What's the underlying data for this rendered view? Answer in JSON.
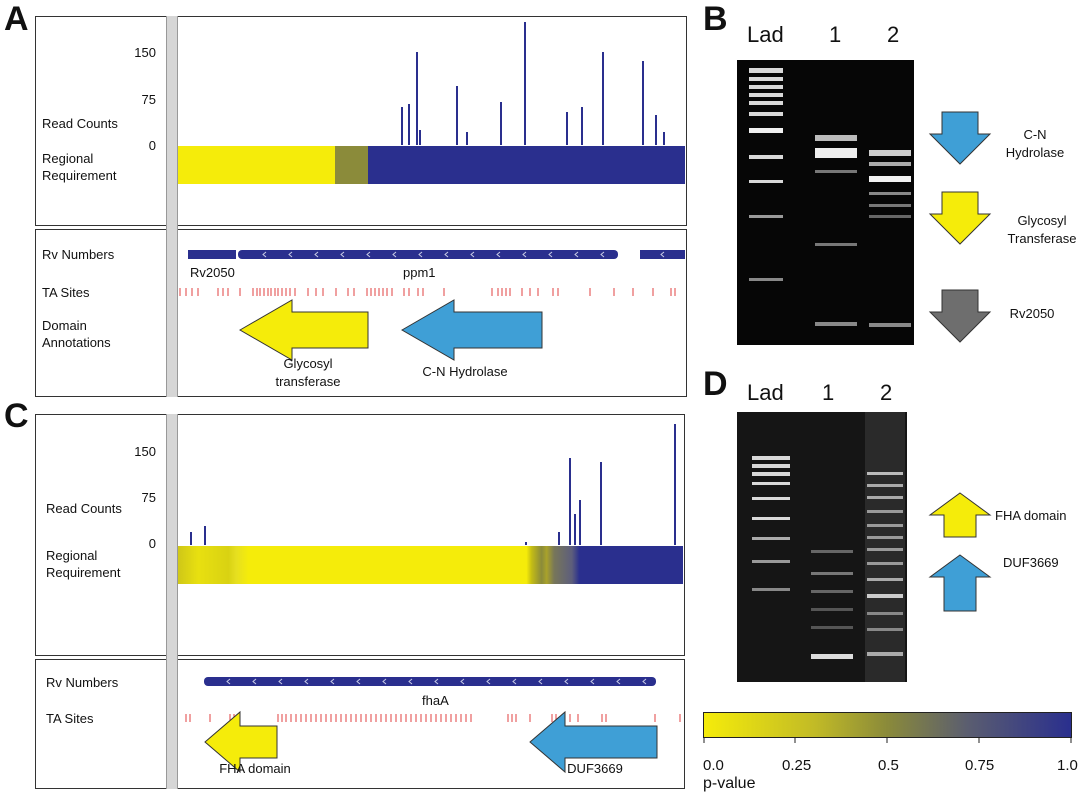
{
  "panels": {
    "A": {
      "letter": "A",
      "track_labels": {
        "read_counts": "Read Counts",
        "regional_requirement": "Regional Requirement"
      },
      "yticks": [
        "150",
        "75",
        "0"
      ],
      "gene_labels": {
        "rv_numbers": "Rv Numbers",
        "ta_sites": "TA Sites",
        "domain_annotations": "Domain Annotations"
      },
      "genes": [
        "Rv2050",
        "ppm1"
      ],
      "domains": [
        {
          "name": "Glycosyl transferase",
          "color": "#f5ec0a"
        },
        {
          "name": "C-N Hydrolase",
          "color": "#3f9fd6"
        }
      ]
    },
    "B": {
      "letter": "B",
      "lanes": [
        "Lad",
        "1",
        "2"
      ],
      "bands": [
        {
          "name": "C-N Hydrolase",
          "color": "#3f9fd6"
        },
        {
          "name": "Glycosyl Transferase",
          "color": "#f5ec0a"
        },
        {
          "name": "Rv2050",
          "color": "#6e6e6e"
        }
      ]
    },
    "C": {
      "letter": "C",
      "track_labels": {
        "read_counts": "Read Counts",
        "regional_requirement": "Regional Requirement"
      },
      "yticks": [
        "150",
        "75",
        "0"
      ],
      "gene_labels": {
        "rv_numbers": "Rv Numbers",
        "ta_sites": "TA Sites"
      },
      "genes": [
        "fhaA"
      ],
      "domains": [
        {
          "name": "FHA domain",
          "color": "#f5ec0a"
        },
        {
          "name": "DUF3669",
          "color": "#3f9fd6"
        }
      ]
    },
    "D": {
      "letter": "D",
      "lanes": [
        "Lad",
        "1",
        "2"
      ],
      "bands": [
        {
          "name": "FHA domain",
          "color": "#f5ec0a"
        },
        {
          "name": "DUF3669",
          "color": "#3f9fd6"
        }
      ]
    }
  },
  "colorbar": {
    "ticks": [
      "0.0",
      "0.25",
      "0.5",
      "0.75",
      "1.0"
    ],
    "label": "p-value",
    "colors": [
      "#f5ec0a",
      "#8a8a3a",
      "#2a2f8e"
    ]
  },
  "colors": {
    "track_blue": "#2a2f8e",
    "ta_red": "#e04040",
    "yellow": "#f5ec0a",
    "olive": "#8b8b3a"
  }
}
